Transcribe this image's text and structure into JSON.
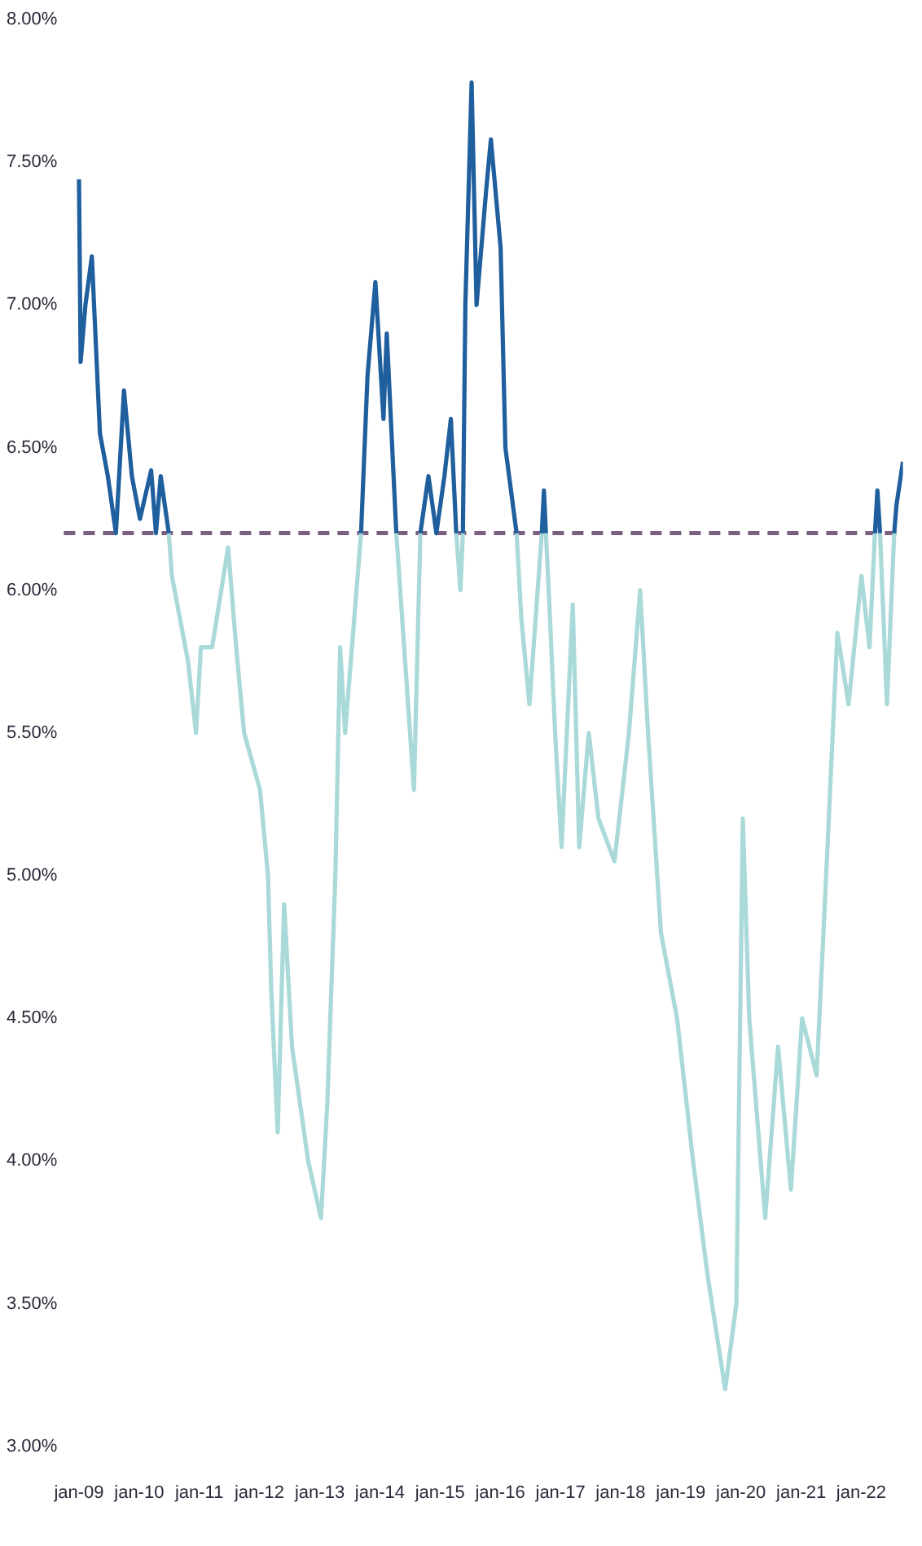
{
  "chart_data": {
    "type": "line",
    "xlim": [
      "2008-10-01",
      "2022-09-11"
    ],
    "xticks": [
      {
        "value": "2009-01",
        "label": "jan-09"
      },
      {
        "value": "2010-01",
        "label": "jan-10"
      },
      {
        "value": "2011-01",
        "label": "jan-11"
      },
      {
        "value": "2012-01",
        "label": "jan-12"
      },
      {
        "value": "2013-01",
        "label": "jan-13"
      },
      {
        "value": "2014-01",
        "label": "jan-14"
      },
      {
        "value": "2015-01",
        "label": "jan-15"
      },
      {
        "value": "2016-01",
        "label": "jan-16"
      },
      {
        "value": "2017-01",
        "label": "jan-17"
      },
      {
        "value": "2018-01",
        "label": "jan-18"
      },
      {
        "value": "2019-01",
        "label": "jan-19"
      },
      {
        "value": "2020-01",
        "label": "jan-20"
      },
      {
        "value": "2021-01",
        "label": "jan-21"
      },
      {
        "value": "2022-01",
        "label": "jan-22"
      }
    ],
    "ylim": [
      3,
      8
    ],
    "yticks": [
      {
        "value": 3,
        "label": "3.00%"
      },
      {
        "value": 3.5,
        "label": "3.50%"
      },
      {
        "value": 4,
        "label": "4.00%"
      },
      {
        "value": 4.5,
        "label": "4.50%"
      },
      {
        "value": 5,
        "label": "5.00%"
      },
      {
        "value": 5.5,
        "label": "5.50%"
      },
      {
        "value": 6,
        "label": "6.00%"
      },
      {
        "value": 6.5,
        "label": "6.50%"
      },
      {
        "value": 7,
        "label": "7.00%"
      },
      {
        "value": 7.5,
        "label": "7.50%"
      },
      {
        "value": 8,
        "label": "8.00%"
      }
    ],
    "grid": false,
    "legend": false,
    "marker": "none",
    "line_style": "solid",
    "series": [
      {
        "color": "#1f5f9e",
        "x": [
          "2009-01-01",
          "2009-01-11",
          "2009-02-09",
          "2009-03-20",
          "2009-05-08",
          "2009-06-25",
          "2009-08-13",
          "2009-10-01",
          "2009-11-18",
          "2010-01-06",
          "2010-03-15",
          "2010-04-13",
          "2010-05-12",
          "2010-06-30",
          "2012-01-01",
          "2013-09-09",
          "2013-10-18",
          "2013-12-05",
          "2014-01-23",
          "2014-02-12",
          "2014-04-11",
          "2014-06-01",
          "2014-09-04",
          "2014-10-23",
          "2014-12-10",
          "2015-01-28",
          "2015-03-08",
          "2015-04-10",
          "2015-05-05",
          "2015-05-20",
          "2015-06-04",
          "2015-07-12",
          "2015-08-11",
          "2015-10-08",
          "2015-11-06",
          "2016-01-04",
          "2016-02-02",
          "2016-04-10",
          "2016-06-27",
          "2016-09-10",
          "2016-09-23",
          "2016-10-05",
          "2019-01-01",
          "2022-03-25",
          "2022-04-09",
          "2022-04-25",
          "2022-06-06",
          "2022-07-20",
          "2022-08-03",
          "2022-09-11"
        ],
        "values": [
          7.44,
          6.8,
          7.0,
          7.17,
          6.55,
          6.4,
          6.2,
          6.7,
          6.4,
          6.25,
          6.42,
          6.2,
          6.4,
          6.2,
          null,
          6.2,
          6.75,
          7.08,
          6.6,
          6.9,
          6.2,
          null,
          6.2,
          6.4,
          6.2,
          6.4,
          6.6,
          6.2,
          null,
          6.2,
          7.0,
          7.78,
          7.0,
          7.4,
          7.58,
          7.2,
          6.5,
          6.2,
          null,
          6.2,
          6.35,
          6.2,
          null,
          6.2,
          6.35,
          6.2,
          null,
          6.2,
          6.3,
          6.45
        ]
      },
      {
        "color": "#a9d9d9",
        "x": [
          "2010-06-30",
          "2010-07-19",
          "2010-09-06",
          "2010-10-25",
          "2010-12-12",
          "2011-01-11",
          "2011-03-20",
          "2011-06-25",
          "2011-08-13",
          "2011-09-30",
          "2012-01-05",
          "2012-02-22",
          "2012-03-13",
          "2012-04-21",
          "2012-05-30",
          "2012-07-17",
          "2012-10-23",
          "2013-01-09",
          "2013-02-16",
          "2013-04-06",
          "2013-05-05",
          "2013-06-04",
          "2013-09-09",
          "2013-12-05",
          "2014-04-11",
          "2014-07-27",
          "2014-09-04",
          "2014-12-10",
          "2015-04-10",
          "2015-05-05",
          "2015-05-20",
          "2015-10-08",
          "2016-04-10",
          "2016-05-09",
          "2016-06-27",
          "2016-09-10",
          "2016-09-23",
          "2016-10-05",
          "2016-10-22",
          "2016-11-30",
          "2017-01-08",
          "2017-03-17",
          "2017-04-25",
          "2017-06-22",
          "2017-08-20",
          "2017-11-25",
          "2018-02-21",
          "2018-04-30",
          "2018-06-17",
          "2018-09-03",
          "2018-12-10",
          "2019-03-17",
          "2019-06-13",
          "2019-09-28",
          "2019-12-05",
          "2020-01-13",
          "2020-02-21",
          "2020-05-28",
          "2020-08-14",
          "2020-10-31",
          "2021-01-07",
          "2021-04-05",
          "2021-06-02",
          "2021-08-09",
          "2021-10-16",
          "2022-01-02",
          "2022-02-20",
          "2022-03-25",
          "2022-04-09",
          "2022-04-25",
          "2022-06-06",
          "2022-07-20"
        ],
        "values": [
          6.2,
          6.05,
          5.9,
          5.75,
          5.5,
          5.8,
          5.8,
          6.15,
          5.8,
          5.5,
          5.3,
          5.0,
          4.6,
          4.1,
          4.9,
          4.4,
          4.0,
          3.8,
          4.2,
          5.0,
          5.8,
          5.5,
          6.2,
          null,
          6.2,
          5.3,
          6.2,
          null,
          6.2,
          6.0,
          6.2,
          null,
          6.2,
          5.9,
          5.6,
          6.2,
          null,
          6.2,
          6.0,
          5.5,
          5.1,
          5.95,
          5.1,
          5.5,
          5.2,
          5.05,
          5.5,
          6.0,
          5.5,
          4.8,
          4.5,
          4.0,
          3.6,
          3.2,
          3.5,
          5.2,
          4.5,
          3.8,
          4.4,
          3.9,
          4.5,
          4.3,
          5.0,
          5.85,
          5.6,
          6.05,
          5.8,
          6.2,
          null,
          6.2,
          5.6,
          6.2
        ]
      }
    ],
    "ref_lines": [
      {
        "axis": "y",
        "value": 6.2,
        "color": "#7a5f80",
        "line_style": "dashed"
      }
    ]
  }
}
